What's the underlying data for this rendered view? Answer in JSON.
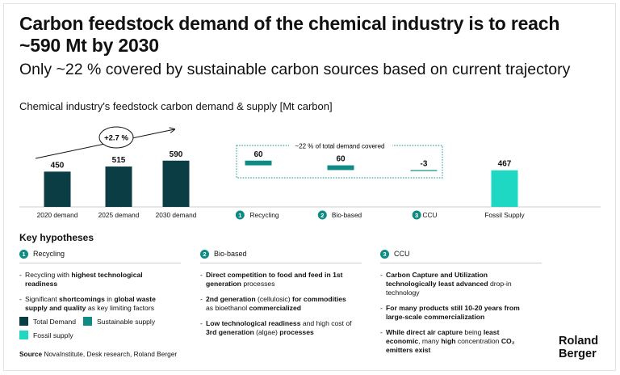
{
  "title": "Carbon feedstock demand of the chemical industry is to reach ~590 Mt by 2030",
  "subtitle": "Only ~22 % covered by sustainable carbon sources based on current trajectory",
  "chart_title": "Chemical industry's feedstock carbon demand & supply [Mt carbon]",
  "growth_label": "+2.7 %",
  "coverage_label": "~22 % of total demand covered",
  "chart_data": {
    "type": "bar",
    "title": "Chemical industry's feedstock carbon demand & supply [Mt carbon]",
    "unit": "Mt carbon",
    "categories": [
      "2020 demand",
      "2025 demand",
      "2030 demand",
      "Recycling",
      "Bio-based",
      "CCU",
      "Fossil Supply"
    ],
    "values": [
      450,
      515,
      590,
      60,
      60,
      -3,
      467
    ],
    "value_labels": [
      "450",
      "515",
      "590",
      "60",
      "60",
      "-3",
      "467"
    ],
    "bar_kind": [
      "total",
      "total",
      "total",
      "sustainable",
      "sustainable",
      "sustainable",
      "fossil"
    ],
    "category_numbers": [
      "",
      "",
      "",
      "1",
      "2",
      "3",
      ""
    ],
    "waterfall": [
      {
        "category": "Recycling",
        "from": 590,
        "to": 530
      },
      {
        "category": "Bio-based",
        "from": 530,
        "to": 470
      },
      {
        "category": "CCU",
        "from": 470,
        "to": 467
      }
    ],
    "annotations": [
      "+2.7 %",
      "~22 % of total demand covered"
    ],
    "colors": {
      "total": "#0b3d45",
      "sustainable": "#0f8b85",
      "fossil": "#1fd8c4"
    },
    "ylim": [
      0,
      600
    ],
    "grid": false,
    "legend": "bottom-left"
  },
  "key_hypotheses": {
    "title": "Key hypotheses",
    "columns": [
      {
        "num": "1",
        "heading": "Recycling",
        "bullets": [
          [
            {
              "t": "Recycling with "
            },
            {
              "t": "highest technological readiness",
              "b": true
            }
          ],
          [
            {
              "t": "Significant "
            },
            {
              "t": "shortcomings",
              "b": true
            },
            {
              "t": " in "
            },
            {
              "t": "global waste supply and quality",
              "b": true
            },
            {
              "t": " as key limiting factors"
            }
          ]
        ]
      },
      {
        "num": "2",
        "heading": "Bio-based",
        "bullets": [
          [
            {
              "t": "Direct competition to food and feed in 1st generation",
              "b": true
            },
            {
              "t": " processes"
            }
          ],
          [
            {
              "t": "2nd generation",
              "b": true
            },
            {
              "t": " (cellulosic) "
            },
            {
              "t": "for commodities",
              "b": true
            },
            {
              "t": " as bioethanol "
            },
            {
              "t": "commercialized",
              "b": true
            }
          ],
          [
            {
              "t": "Low technological readiness",
              "b": true
            },
            {
              "t": " and high cost of "
            },
            {
              "t": "3rd generation",
              "b": true
            },
            {
              "t": " (algae) "
            },
            {
              "t": "processes",
              "b": true
            }
          ]
        ]
      },
      {
        "num": "3",
        "heading": "CCU",
        "bullets": [
          [
            {
              "t": "Carbon Capture and Utilization technologically least advanced",
              "b": true
            },
            {
              "t": " drop-in technology"
            }
          ],
          [
            {
              "t": "For many products still 10-20 years from large-scale commercialization",
              "b": true
            }
          ],
          [
            {
              "t": "While direct air capture",
              "b": true
            },
            {
              "t": " being "
            },
            {
              "t": "least economic",
              "b": true
            },
            {
              "t": ", many "
            },
            {
              "t": "high",
              "b": true
            },
            {
              "t": " concentration "
            },
            {
              "t": "CO₂ emitters exist",
              "b": true
            }
          ]
        ]
      }
    ]
  },
  "legend": {
    "total": "Total Demand",
    "sustainable": "Sustainable supply",
    "fossil": "Fossil supply"
  },
  "source": {
    "label": "Source",
    "text": " NovaInstitute, Desk research, Roland Berger"
  },
  "logo": {
    "line1": "Roland",
    "line2": "Berger"
  }
}
